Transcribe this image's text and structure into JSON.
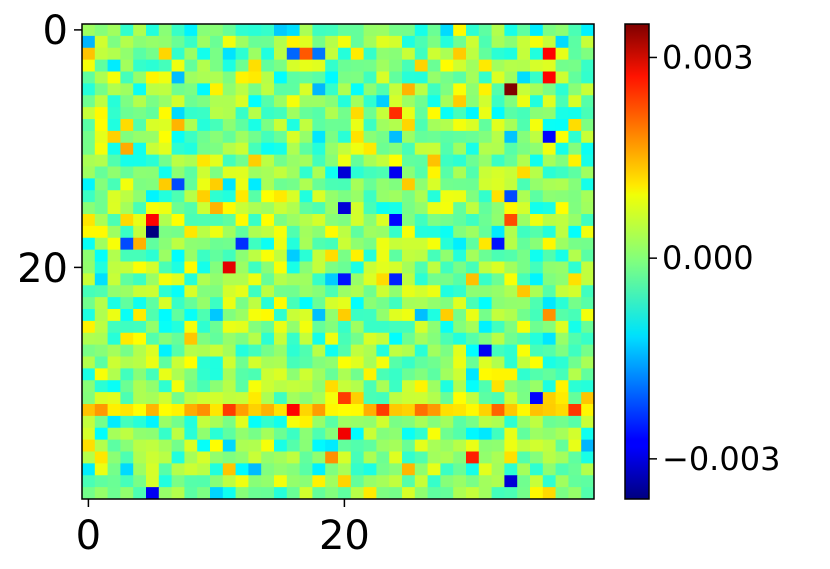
{
  "chart_data": {
    "type": "heatmap",
    "title": "",
    "xlabel": "",
    "ylabel": "",
    "grid": false,
    "colormap": "jet",
    "rows": 40,
    "cols": 40,
    "x_ticks": [
      0,
      20
    ],
    "x_tick_labels": [
      "0",
      "20"
    ],
    "y_ticks": [
      0,
      20
    ],
    "y_tick_labels": [
      "0",
      "20"
    ],
    "colorbar": {
      "vmin": -0.0036,
      "vmax": 0.0035,
      "ticks": [
        -0.003,
        0.0,
        0.003
      ],
      "tick_labels": [
        "−0.003",
        "0.000",
        "0.003"
      ]
    },
    "notable_cells": [
      {
        "row": 5,
        "col": 33,
        "value": 0.0035
      },
      {
        "row": 2,
        "col": 36,
        "value": 0.0026
      },
      {
        "row": 4,
        "col": 36,
        "value": 0.0026
      },
      {
        "row": 16,
        "col": 5,
        "value": 0.0026
      },
      {
        "row": 17,
        "col": 5,
        "value": -0.0036
      },
      {
        "row": 20,
        "col": 11,
        "value": 0.0028
      },
      {
        "row": 34,
        "col": 20,
        "value": 0.0027
      },
      {
        "row": 32,
        "col": 16,
        "value": 0.0026
      },
      {
        "row": 12,
        "col": 20,
        "value": -0.003
      },
      {
        "row": 12,
        "col": 24,
        "value": -0.0028
      },
      {
        "row": 7,
        "col": 24,
        "value": 0.0023
      },
      {
        "row": 15,
        "col": 20,
        "value": -0.003
      },
      {
        "row": 16,
        "col": 24,
        "value": -0.0027
      },
      {
        "row": 21,
        "col": 20,
        "value": -0.0026
      },
      {
        "row": 21,
        "col": 24,
        "value": -0.0025
      },
      {
        "row": 27,
        "col": 31,
        "value": -0.0028
      },
      {
        "row": 31,
        "col": 35,
        "value": -0.0027
      },
      {
        "row": 38,
        "col": 33,
        "value": -0.003
      },
      {
        "row": 39,
        "col": 5,
        "value": -0.0028
      },
      {
        "row": 18,
        "col": 32,
        "value": -0.0026
      },
      {
        "row": 9,
        "col": 36,
        "value": -0.0027
      },
      {
        "row": 18,
        "col": 12,
        "value": -0.0024
      },
      {
        "row": 18,
        "col": 3,
        "value": -0.0022
      },
      {
        "row": 32,
        "col": 23,
        "value": 0.0022
      },
      {
        "row": 32,
        "col": 11,
        "value": 0.0022
      },
      {
        "row": 31,
        "col": 20,
        "value": 0.0022
      },
      {
        "row": 16,
        "col": 33,
        "value": 0.0021
      },
      {
        "row": 2,
        "col": 17,
        "value": 0.002
      },
      {
        "row": 36,
        "col": 30,
        "value": 0.0024
      },
      {
        "row": 14,
        "col": 33,
        "value": -0.0022
      },
      {
        "row": 13,
        "col": 7,
        "value": -0.0022
      },
      {
        "row": 2,
        "col": 16,
        "value": -0.002
      },
      {
        "row": 2,
        "col": 18,
        "value": -0.0019
      },
      {
        "row": 24,
        "col": 36,
        "value": 0.0016
      }
    ]
  }
}
